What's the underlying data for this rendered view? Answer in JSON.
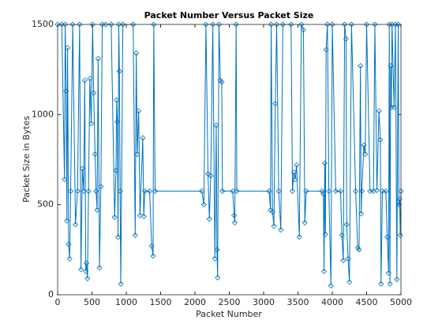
{
  "chart_data": {
    "type": "line",
    "title": "Packet Number Versus Packet Size",
    "x_label": "Packet Number",
    "y_label": "Packet Size in Bytes",
    "color": "#0072bd",
    "xlim": [
      0,
      5000
    ],
    "ylim": [
      0,
      1500
    ],
    "xticks": [
      0,
      500,
      1000,
      1500,
      2000,
      2500,
      3000,
      3500,
      4000,
      4500,
      5000
    ],
    "yticks": [
      0,
      500,
      1000,
      1500
    ],
    "x": [
      0,
      60,
      100,
      110,
      125,
      135,
      145,
      160,
      175,
      190,
      220,
      260,
      290,
      320,
      340,
      360,
      380,
      395,
      410,
      420,
      435,
      450,
      470,
      490,
      510,
      525,
      545,
      560,
      575,
      590,
      610,
      630,
      650,
      700,
      780,
      830,
      850,
      860,
      870,
      880,
      890,
      900,
      910,
      920,
      950,
      1100,
      1130,
      1145,
      1160,
      1180,
      1200,
      1240,
      1255,
      1270,
      1340,
      1370,
      1390,
      1400,
      1420,
      2100,
      2130,
      2160,
      2190,
      2210,
      2230,
      2260,
      2290,
      2310,
      2320,
      2330,
      2350,
      2370,
      2390,
      2400,
      2550,
      2570,
      2580,
      2600,
      2610,
      3080,
      3100,
      3110,
      3130,
      3150,
      3170,
      3190,
      3220,
      3250,
      3280,
      3400,
      3420,
      3440,
      3460,
      3480,
      3520,
      3550,
      3580,
      3600,
      3620,
      3850,
      3870,
      3880,
      3890,
      3900,
      3910,
      3930,
      3950,
      3980,
      4000,
      4050,
      4120,
      4140,
      4160,
      4180,
      4200,
      4210,
      4230,
      4250,
      4280,
      4340,
      4370,
      4390,
      4410,
      4420,
      4430,
      4460,
      4480,
      4500,
      4550,
      4600,
      4620,
      4650,
      4680,
      4700,
      4710,
      4730,
      4780,
      4800,
      4820,
      4830,
      4840,
      4850,
      4860,
      4870,
      4900,
      4920,
      4940,
      4960,
      4970,
      4980,
      4990,
      5000
    ],
    "values": [
      1500,
      1500,
      640,
      1500,
      1130,
      410,
      1370,
      280,
      200,
      575,
      1500,
      390,
      575,
      1500,
      140,
      700,
      575,
      1190,
      130,
      175,
      90,
      575,
      1200,
      950,
      1500,
      1120,
      780,
      575,
      470,
      1310,
      150,
      600,
      1500,
      1500,
      1500,
      430,
      690,
      1080,
      960,
      320,
      1500,
      1240,
      575,
      60,
      1500,
      1500,
      330,
      1340,
      780,
      1020,
      440,
      870,
      435,
      575,
      575,
      270,
      215,
      1500,
      575,
      575,
      500,
      1500,
      670,
      420,
      660,
      1500,
      200,
      940,
      250,
      95,
      1500,
      1190,
      1180,
      575,
      575,
      440,
      400,
      1500,
      575,
      575,
      470,
      1500,
      460,
      380,
      1060,
      1500,
      575,
      360,
      1500,
      1500,
      575,
      680,
      640,
      720,
      320,
      1500,
      1470,
      400,
      575,
      575,
      560,
      130,
      730,
      335,
      1360,
      1500,
      575,
      50,
      1500,
      575,
      575,
      330,
      190,
      1500,
      1420,
      390,
      200,
      70,
      1500,
      575,
      260,
      250,
      1270,
      450,
      575,
      830,
      780,
      1500,
      575,
      575,
      1500,
      580,
      1020,
      860,
      60,
      575,
      575,
      320,
      120,
      1500,
      60,
      1270,
      1040,
      1500,
      1040,
      1500,
      85,
      1500,
      500,
      530,
      330,
      575
    ]
  }
}
